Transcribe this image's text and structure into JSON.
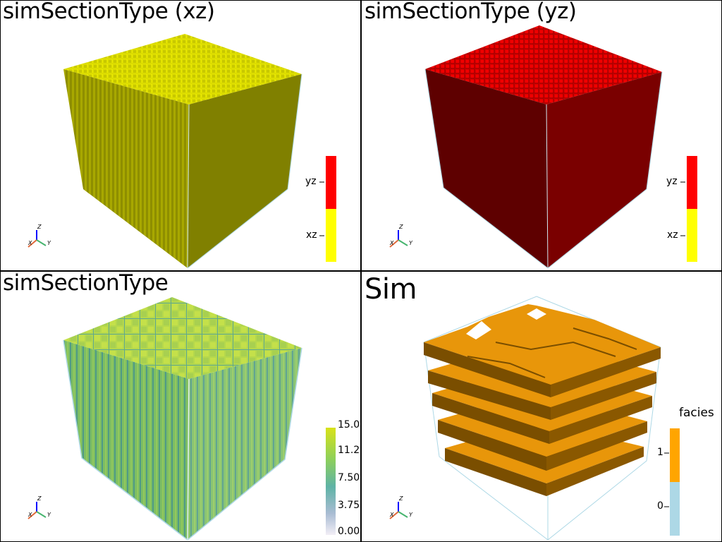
{
  "panels": [
    {
      "title": "simSectionType (xz)",
      "scalar_bar": {
        "type": "categorical",
        "labels": [
          "yz",
          "xz"
        ],
        "colors": [
          "#ff0000",
          "#ffff00"
        ]
      },
      "cube_colors": {
        "top": "#e6e600",
        "left": "#9a9a00",
        "right": "#808000"
      }
    },
    {
      "title": "simSectionType (yz)",
      "scalar_bar": {
        "type": "categorical",
        "labels": [
          "yz",
          "xz"
        ],
        "colors": [
          "#ff0000",
          "#ffff00"
        ]
      },
      "cube_colors": {
        "top": "#e60000",
        "left": "#5c0000",
        "right": "#7a0000"
      }
    },
    {
      "title": "simSectionType",
      "scalar_bar": {
        "type": "continuous",
        "ticks": [
          "15.0",
          "11.2",
          "7.50",
          "3.75",
          "0.00"
        ],
        "colormap": "viridis"
      },
      "cube_colors": {
        "top": "#b6d94a",
        "left": "#6fb070",
        "right": "#78bb6c"
      }
    },
    {
      "title": "Sim",
      "scalar_bar": {
        "type": "categorical",
        "title": "facies",
        "labels": [
          "1",
          "0"
        ],
        "colors": [
          "#ffa500",
          "#add8e6"
        ]
      },
      "cube_colors": {
        "top": "#e8960a",
        "side": "#805000"
      }
    }
  ],
  "axes_widget": {
    "x": "X",
    "y": "Y",
    "z": "Z"
  },
  "bounding_box_color": "#add8e6"
}
